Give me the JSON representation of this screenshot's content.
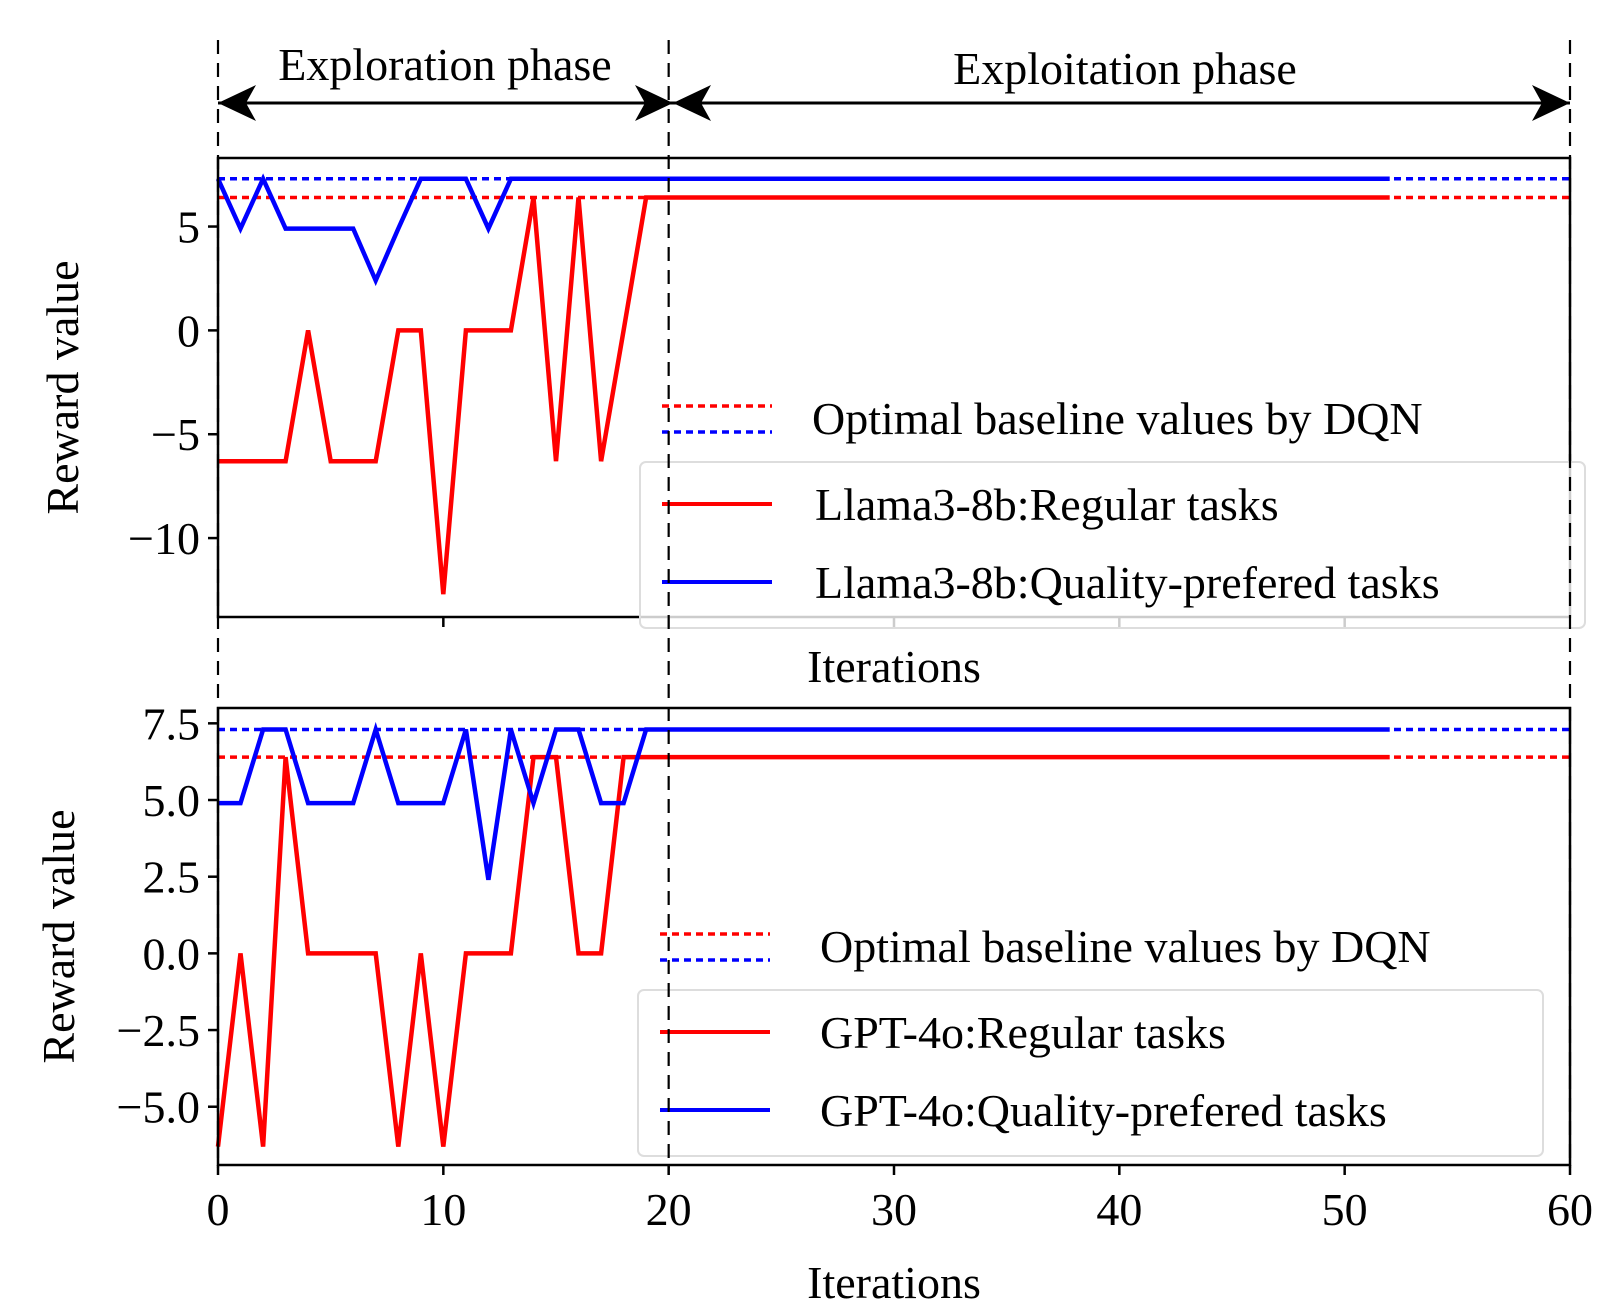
{
  "phases": {
    "exploration_label": "Exploration phase",
    "exploitation_label": "Exploitation phase",
    "boundaries": [
      0,
      20,
      60
    ]
  },
  "colors": {
    "red": "#ff0000",
    "blue": "#0000ff",
    "axis": "#000000"
  },
  "chart_data": [
    {
      "type": "line",
      "id": "top",
      "title": "",
      "xlabel": "Iterations",
      "ylabel": "Reward value",
      "xlim": [
        0,
        60
      ],
      "ylim": [
        -13.8,
        8.3
      ],
      "yticks": [
        -10,
        -5,
        0,
        5
      ],
      "ytick_labels": [
        "−10",
        "−5",
        "0",
        "5"
      ],
      "xticks": [
        10,
        20,
        30,
        40,
        50
      ],
      "show_xtick_labels": false,
      "baselines": [
        {
          "name": "Optimal baseline values by DQN",
          "color": "#ff0000",
          "value": 6.4
        },
        {
          "name": "Optimal baseline values by DQN",
          "color": "#0000ff",
          "value": 7.3
        }
      ],
      "series": [
        {
          "name": "Llama3-8b:Regular tasks",
          "color": "#ff0000",
          "x": [
            0,
            1,
            2,
            3,
            4,
            5,
            6,
            7,
            8,
            9,
            10,
            11,
            12,
            13,
            14,
            15,
            16,
            17,
            18,
            19,
            52
          ],
          "values": [
            -6.3,
            -6.3,
            -6.3,
            -6.3,
            0,
            -6.3,
            -6.3,
            -6.3,
            0,
            0,
            -12.7,
            0,
            0,
            0,
            6.4,
            -6.3,
            6.4,
            -6.3,
            0,
            6.4,
            6.4
          ]
        },
        {
          "name": "Llama3-8b:Quality-prefered tasks",
          "color": "#0000ff",
          "x": [
            0,
            1,
            2,
            3,
            4,
            5,
            6,
            7,
            8,
            9,
            10,
            11,
            12,
            13,
            52
          ],
          "values": [
            7.3,
            4.9,
            7.3,
            4.9,
            4.9,
            4.9,
            4.9,
            2.4,
            4.9,
            7.3,
            7.3,
            7.3,
            4.9,
            7.3,
            7.3
          ]
        }
      ],
      "legend": {
        "position": "lower-right",
        "entries": [
          "Optimal baseline values by DQN",
          "Llama3-8b:Regular tasks",
          "Llama3-8b:Quality-prefered tasks"
        ]
      }
    },
    {
      "type": "line",
      "id": "bottom",
      "title": "",
      "xlabel": "Iterations",
      "ylabel": "Reward value",
      "xlim": [
        0,
        60
      ],
      "ylim": [
        -6.9,
        8.0
      ],
      "yticks": [
        -5.0,
        -2.5,
        0.0,
        2.5,
        5.0,
        7.5
      ],
      "ytick_labels": [
        "−5.0",
        "−2.5",
        "0.0",
        "2.5",
        "5.0",
        "7.5"
      ],
      "xticks": [
        0,
        10,
        20,
        30,
        40,
        50,
        60
      ],
      "show_xtick_labels": true,
      "baselines": [
        {
          "name": "Optimal baseline values by DQN",
          "color": "#ff0000",
          "value": 6.4
        },
        {
          "name": "Optimal baseline values by DQN",
          "color": "#0000ff",
          "value": 7.3
        }
      ],
      "series": [
        {
          "name": "GPT-4o:Regular tasks",
          "color": "#ff0000",
          "x": [
            0,
            1,
            2,
            3,
            4,
            5,
            6,
            7,
            8,
            9,
            10,
            11,
            12,
            13,
            14,
            15,
            16,
            17,
            18,
            19,
            52
          ],
          "values": [
            -6.3,
            0,
            -6.3,
            6.4,
            0,
            0,
            0,
            0,
            -6.3,
            0,
            -6.3,
            0,
            0,
            0,
            6.4,
            6.4,
            0,
            0,
            6.4,
            6.4,
            6.4
          ]
        },
        {
          "name": "GPT-4o:Quality-prefered tasks",
          "color": "#0000ff",
          "x": [
            0,
            1,
            2,
            3,
            4,
            5,
            6,
            7,
            8,
            9,
            10,
            11,
            12,
            13,
            14,
            15,
            16,
            17,
            18,
            19,
            52
          ],
          "values": [
            4.9,
            4.9,
            7.3,
            7.3,
            4.9,
            4.9,
            4.9,
            7.3,
            4.9,
            4.9,
            4.9,
            7.3,
            2.4,
            7.3,
            4.9,
            7.3,
            7.3,
            4.9,
            4.9,
            7.3,
            7.3
          ]
        }
      ],
      "legend": {
        "position": "lower-right",
        "entries": [
          "Optimal baseline values by DQN",
          "GPT-4o:Regular tasks",
          "GPT-4o:Quality-prefered tasks"
        ]
      }
    }
  ]
}
